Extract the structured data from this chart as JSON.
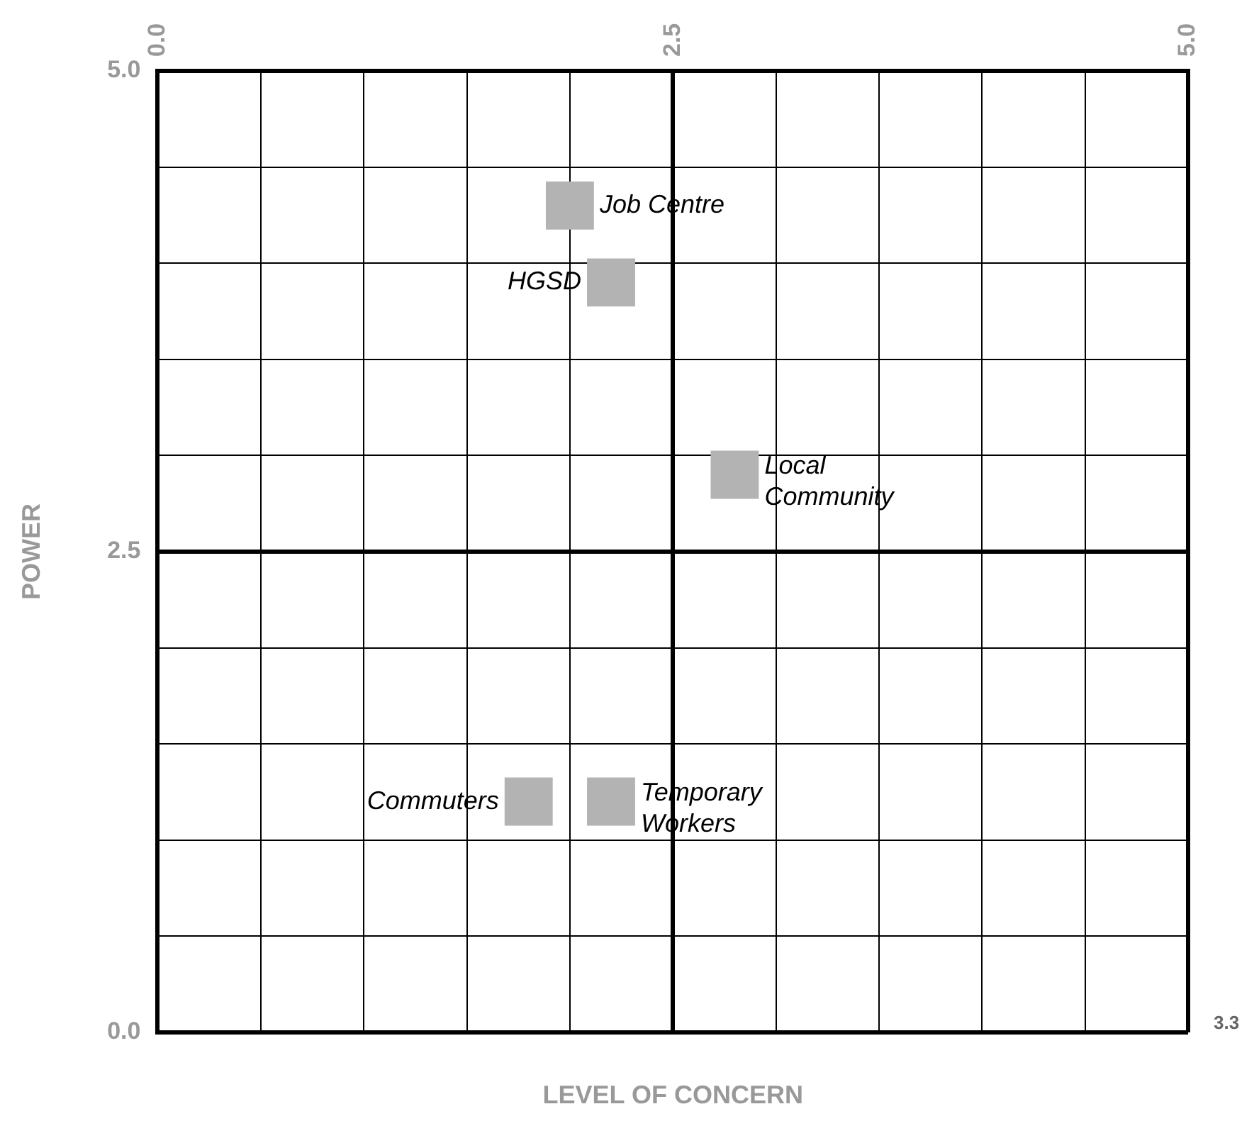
{
  "chart_data": {
    "type": "scatter",
    "xlabel": "LEVEL OF CONCERN",
    "ylabel": "POWER",
    "x": [
      2.0,
      2.2,
      2.8,
      1.8,
      2.2
    ],
    "series": [
      {
        "color": "#b3b3b3",
        "values": [
          4.3,
          3.9,
          2.9,
          1.2,
          1.2
        ]
      }
    ],
    "marker": "square",
    "grid": true,
    "legend": false,
    "xlim": [
      0,
      5
    ],
    "ylim": [
      0,
      5
    ],
    "xticks": [
      {
        "value": 0,
        "label": "0.0"
      },
      {
        "value": 0.5,
        "label": null
      },
      {
        "value": 1,
        "label": null
      },
      {
        "value": 1.5,
        "label": null
      },
      {
        "value": 2,
        "label": null
      },
      {
        "value": 2.5,
        "label": "2.5"
      },
      {
        "value": 3,
        "label": null
      },
      {
        "value": 3.5,
        "label": null
      },
      {
        "value": 4,
        "label": null
      },
      {
        "value": 4.5,
        "label": null
      },
      {
        "value": 5,
        "label": "5.0"
      }
    ],
    "yticks": [
      {
        "value": 0,
        "label": "0.0"
      },
      {
        "value": 0.5,
        "label": null
      },
      {
        "value": 1,
        "label": null
      },
      {
        "value": 1.5,
        "label": null
      },
      {
        "value": 2,
        "label": null
      },
      {
        "value": 2.5,
        "label": "2.5"
      },
      {
        "value": 3,
        "label": null
      },
      {
        "value": 3.5,
        "label": null
      },
      {
        "value": 4,
        "label": null
      },
      {
        "value": 4.5,
        "label": null
      },
      {
        "value": 5,
        "label": "5.0"
      }
    ],
    "annotations": [
      {
        "text": "Job Centre",
        "x": 2.0,
        "y": 4.3
      },
      {
        "text": "HGSD",
        "x": 2.2,
        "y": 3.9
      },
      {
        "text": "Local Community",
        "x": 2.8,
        "y": 2.9
      },
      {
        "text": "Commuters",
        "x": 1.8,
        "y": 1.2
      },
      {
        "text": "Temporary Workers",
        "x": 2.2,
        "y": 1.2
      },
      "3.3"
    ]
  }
}
